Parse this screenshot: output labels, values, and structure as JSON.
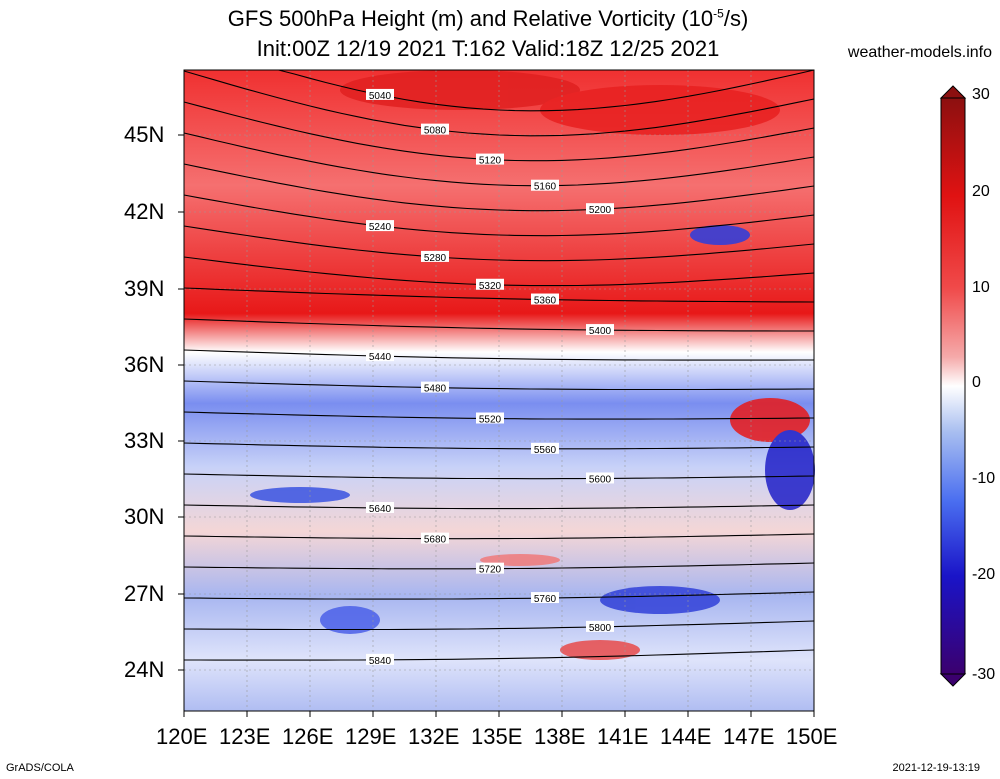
{
  "title_line1": "GFS 500hPa Height (m) and Relative Vorticity (10",
  "title_line1_exp": "-5",
  "title_line1_end": "/s)",
  "title_line2": "Init:00Z 12/19 2021 T:162 Valid:18Z 12/25 2021",
  "site": "weather-models.info",
  "footer_left": "GrADS/COLA",
  "footer_right": "2021-12-19-13:19",
  "lat_labels": [
    "45N",
    "42N",
    "39N",
    "36N",
    "33N",
    "30N",
    "27N",
    "24N"
  ],
  "lon_labels": [
    "120E",
    "123E",
    "126E",
    "129E",
    "132E",
    "135E",
    "138E",
    "141E",
    "144E",
    "147E",
    "150E"
  ],
  "colorbar": {
    "ticks": [
      "30",
      "20",
      "10",
      "0",
      "-10",
      "-20",
      "-30"
    ],
    "min": -30,
    "max": 30,
    "colors": [
      "#3b006e",
      "#1a14c8",
      "#4a6ef0",
      "#a8bef0",
      "#ffffff",
      "#f5aaaa",
      "#f04a4a",
      "#e01212",
      "#8c1010"
    ]
  },
  "contour_labels": [
    "5040",
    "5080",
    "5120",
    "5160",
    "5200",
    "5240",
    "5280",
    "5320",
    "5360",
    "5400",
    "5440",
    "5480",
    "5520",
    "5560",
    "5600",
    "5640",
    "5680",
    "5720",
    "5760",
    "5800",
    "5840"
  ]
}
